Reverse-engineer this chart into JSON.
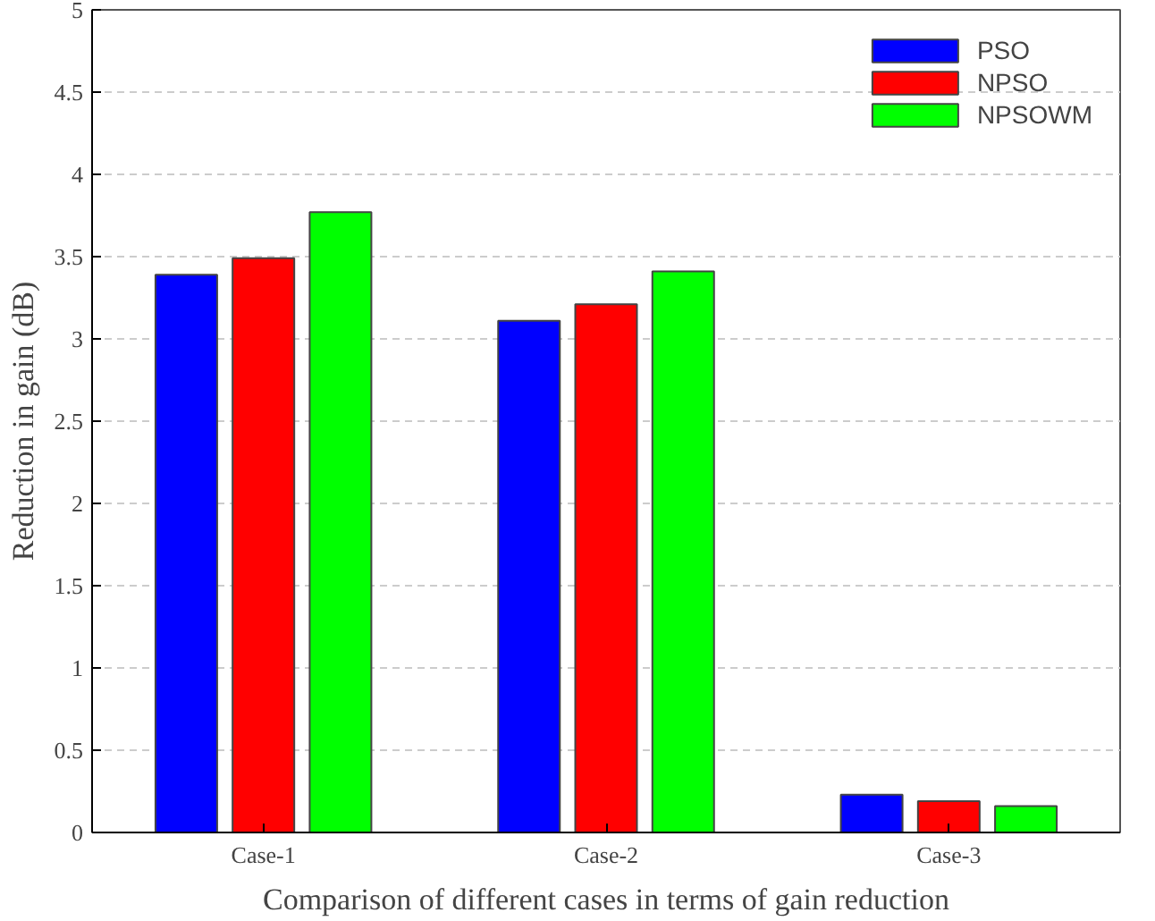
{
  "chart_data": {
    "type": "bar",
    "xlabel": "Comparison of different cases in terms of gain reduction",
    "ylabel": "Reduction in gain (dB)",
    "categories": [
      "Case-1",
      "Case-2",
      "Case-3"
    ],
    "series": [
      {
        "name": "PSO",
        "color": "#0000ff",
        "values": [
          3.39,
          3.11,
          0.23
        ]
      },
      {
        "name": "NPSO",
        "color": "#ff0000",
        "values": [
          3.49,
          3.21,
          0.19
        ]
      },
      {
        "name": "NPSOWM",
        "color": "#00ff00",
        "values": [
          3.77,
          3.41,
          0.16
        ]
      }
    ],
    "ylim": [
      0,
      5
    ],
    "yticks": [
      0,
      0.5,
      1,
      1.5,
      2,
      2.5,
      3,
      3.5,
      4,
      4.5,
      5
    ],
    "grid": "y",
    "legend": "top right"
  }
}
